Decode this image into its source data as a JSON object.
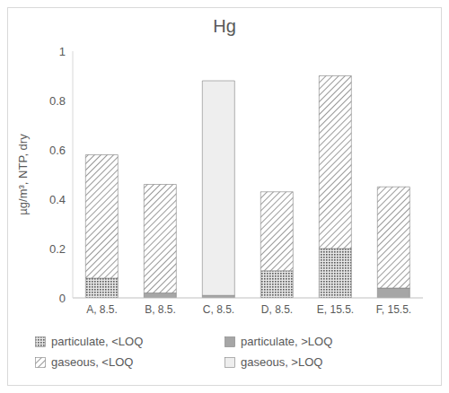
{
  "chart_data": {
    "type": "bar",
    "title": "Hg",
    "y_label": "µg/m³, NTP, dry",
    "stacked": true,
    "grid": false,
    "legend": "bottom",
    "categories": [
      "A, 8.5.",
      "B, 8.5.",
      "C, 8.5.",
      "D, 8.5.",
      "E, 15.5.",
      "F, 15.5."
    ],
    "series": [
      {
        "name": "particulate, <LOQ",
        "color": "#595959",
        "values": [
          0.08,
          0,
          0,
          0.11,
          0.2,
          0
        ]
      },
      {
        "name": "particulate, >LOQ",
        "color": "#a6a6a6",
        "values": [
          0,
          0.02,
          0.01,
          0,
          0,
          0.04
        ]
      },
      {
        "name": "gaseous, <LOQ",
        "color": "#7f7f7f",
        "values": [
          0.5,
          0.44,
          0,
          0.32,
          0.7,
          0.41
        ]
      },
      {
        "name": "gaseous, >LOQ",
        "color": "#eeeeee",
        "values": [
          0,
          0,
          0.87,
          0,
          0,
          0
        ]
      }
    ],
    "ylim": [
      0,
      1
    ],
    "yticks": [
      0,
      0.2,
      0.4,
      0.6,
      0.8,
      1
    ]
  }
}
